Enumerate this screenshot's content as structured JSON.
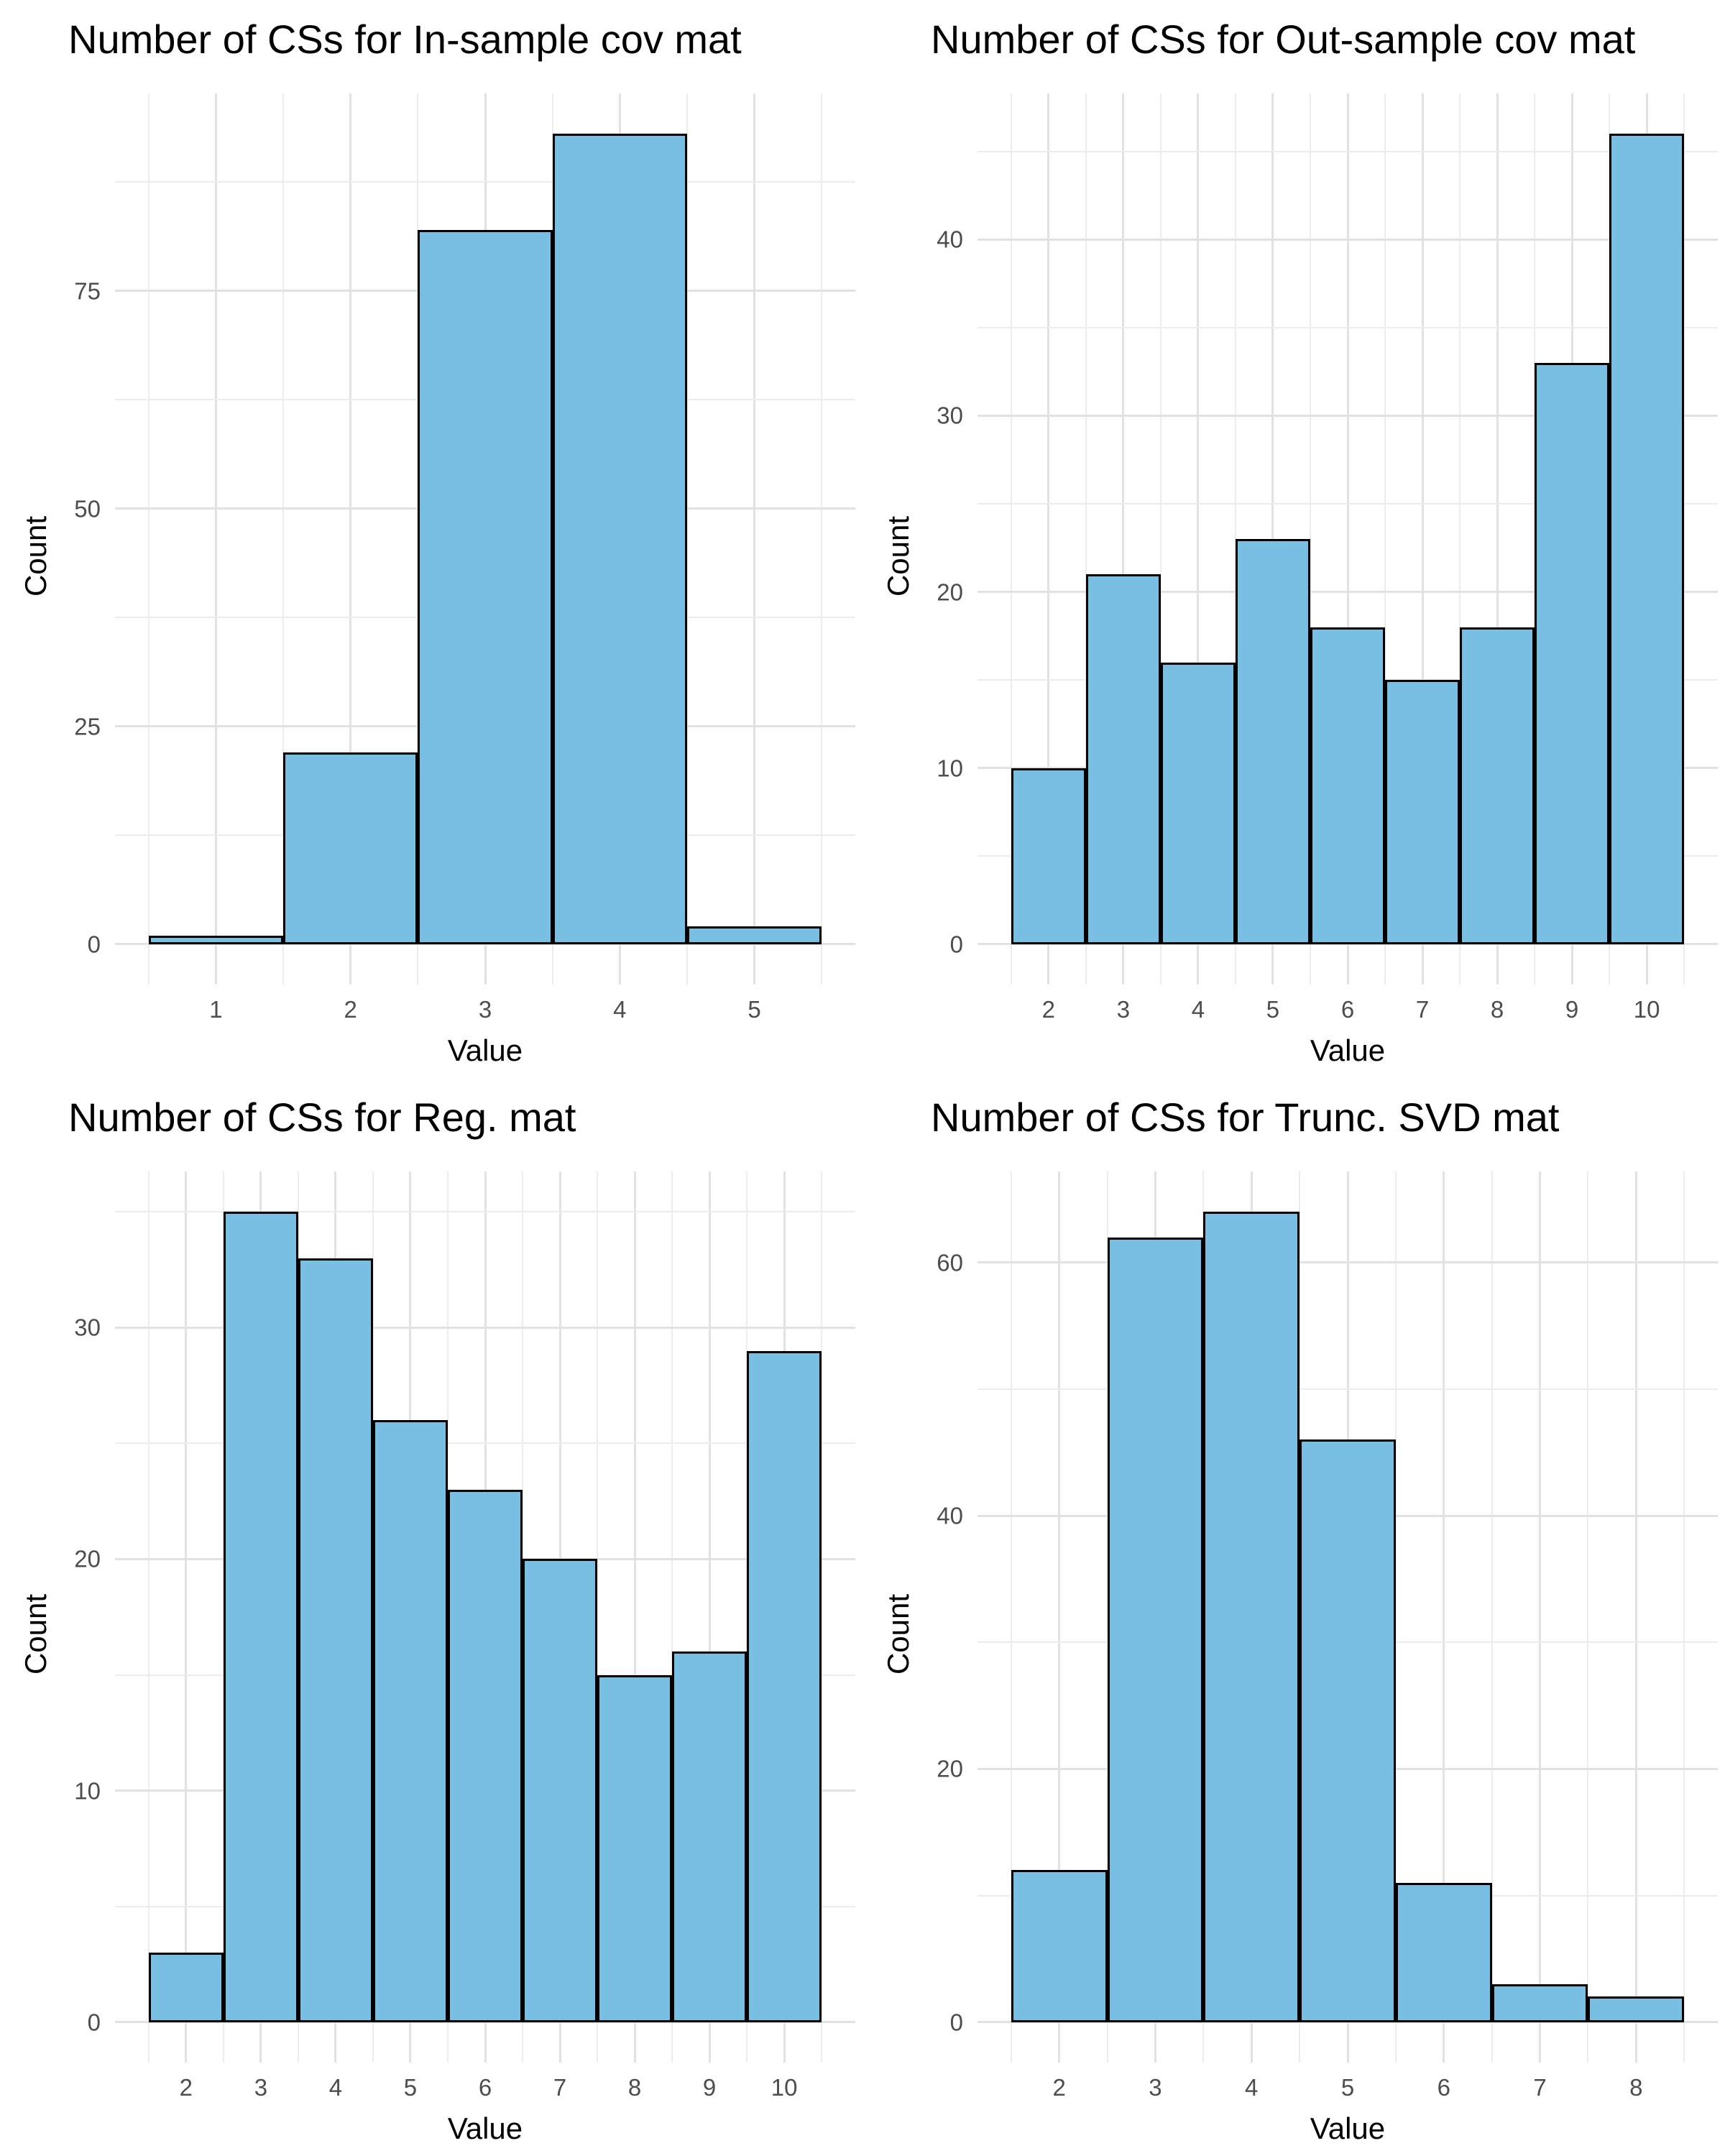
{
  "figure": {
    "background": "#ffffff",
    "layout": "2x2 grid of histograms",
    "n_panels": 4
  },
  "style": {
    "bar_fill": "#79bfe3",
    "bar_stroke": "#000000",
    "grid_major_color": "#e2e2e2",
    "grid_minor_color": "#ececec",
    "tick_label_color": "#4d4d4d",
    "title_color": "#000000",
    "axis_title_color": "#000000"
  },
  "chart_data": [
    {
      "type": "bar",
      "subtype": "histogram",
      "title": "Number of CSs for In-sample cov mat",
      "xlabel": "Value",
      "ylabel": "Count",
      "categories": [
        1,
        2,
        3,
        4,
        5
      ],
      "values": [
        1,
        22,
        82,
        93,
        2
      ],
      "bin_width": 1,
      "x_major_ticks": [
        1,
        2,
        3,
        4,
        5
      ],
      "y_major_ticks": [
        0,
        25,
        50,
        75
      ],
      "y_tick_step": 25,
      "ylim": [
        0,
        97.65
      ],
      "grid": true,
      "legend": false
    },
    {
      "type": "bar",
      "subtype": "histogram",
      "title": "Number of CSs for Out-sample cov mat",
      "xlabel": "Value",
      "ylabel": "Count",
      "categories": [
        2,
        3,
        4,
        5,
        6,
        7,
        8,
        9,
        10
      ],
      "values": [
        10,
        21,
        16,
        23,
        18,
        15,
        18,
        33,
        46
      ],
      "bin_width": 1,
      "x_major_ticks": [
        2,
        3,
        4,
        5,
        6,
        7,
        8,
        9,
        10
      ],
      "y_major_ticks": [
        0,
        10,
        20,
        30,
        40
      ],
      "y_tick_step": 10,
      "ylim": [
        0,
        48.3
      ],
      "grid": true,
      "legend": false
    },
    {
      "type": "bar",
      "subtype": "histogram",
      "title": "Number of CSs for Reg. mat",
      "xlabel": "Value",
      "ylabel": "Count",
      "categories": [
        2,
        3,
        4,
        5,
        6,
        7,
        8,
        9,
        10
      ],
      "values": [
        3,
        35,
        33,
        26,
        23,
        20,
        15,
        16,
        29
      ],
      "bin_width": 1,
      "x_major_ticks": [
        2,
        3,
        4,
        5,
        6,
        7,
        8,
        9,
        10
      ],
      "y_major_ticks": [
        0,
        10,
        20,
        30
      ],
      "y_tick_step": 10,
      "ylim": [
        0,
        36.75
      ],
      "grid": true,
      "legend": false
    },
    {
      "type": "bar",
      "subtype": "histogram",
      "title": "Number of CSs for Trunc. SVD mat",
      "xlabel": "Value",
      "ylabel": "Count",
      "categories": [
        2,
        3,
        4,
        5,
        6,
        7,
        8
      ],
      "values": [
        12,
        62,
        64,
        46,
        11,
        3,
        2
      ],
      "bin_width": 1,
      "x_major_ticks": [
        2,
        3,
        4,
        5,
        6,
        7,
        8
      ],
      "y_major_ticks": [
        0,
        20,
        40,
        60
      ],
      "y_tick_step": 20,
      "ylim": [
        0,
        67.2
      ],
      "grid": true,
      "legend": false
    }
  ]
}
